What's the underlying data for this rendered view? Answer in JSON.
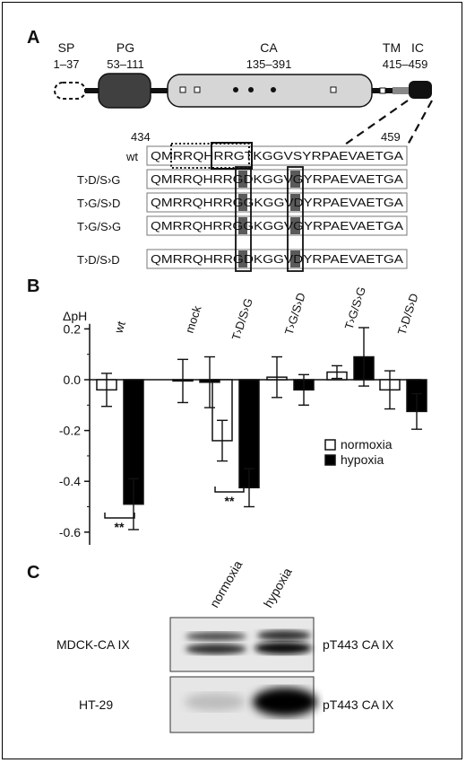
{
  "panel_a": {
    "label": "A",
    "domains": [
      {
        "name": "SP",
        "range": "1–37"
      },
      {
        "name": "PG",
        "range": "53–111"
      },
      {
        "name": "CA",
        "range": "135–391"
      },
      {
        "name": "TM",
        "range": "415–459"
      },
      {
        "name": "IC",
        "range": ""
      }
    ],
    "seq_start": "434",
    "seq_end": "459",
    "rows": [
      {
        "label": "wt",
        "seq": "QMRRQHRRGTKGGVSYRPAEVAETGA"
      },
      {
        "label": "T›D/S›G",
        "seq": "QMRRQHRRGDKGGVGYRPAEVAETGA"
      },
      {
        "label": "T›G/S›D",
        "seq": "QMRRQHRRGGKGGVDYRPAEVAETGA"
      },
      {
        "label": "T›G/S›G",
        "seq": "QMRRQHRRGGKGGVGYRPAEVAETGA"
      },
      {
        "label": "T›D/S›D",
        "seq": "QMRRQHRRGDKGGVDYRPAEVAETGA"
      }
    ]
  },
  "panel_b": {
    "label": "B",
    "legend": [
      {
        "name": "normoxia",
        "color": "#ffffff"
      },
      {
        "name": "hypoxia",
        "color": "#000000"
      }
    ],
    "significance": [
      "**",
      "**"
    ]
  },
  "chart_data": {
    "type": "bar",
    "ylabel": "ΔpH",
    "ylim": [
      -0.65,
      0.22
    ],
    "yticks": [
      "0.2",
      "0.0",
      "-0.2",
      "-0.4",
      "-0.6"
    ],
    "categories": [
      "wt",
      "mock",
      "T›D/S›G",
      "T›G/S›D",
      "T›G/S›G",
      "T›D/S›D"
    ],
    "series": [
      {
        "name": "normoxia",
        "values": [
          -0.04,
          -0.005,
          -0.24,
          0.01,
          0.03,
          -0.04
        ],
        "errors": [
          0.065,
          0.085,
          0.08,
          0.08,
          0.025,
          0.075
        ]
      },
      {
        "name": "hypoxia",
        "values": [
          -0.49,
          -0.01,
          -0.425,
          -0.04,
          0.09,
          -0.125
        ],
        "errors": [
          0.1,
          0.1,
          0.075,
          0.06,
          0.115,
          0.07
        ]
      }
    ]
  },
  "panel_c": {
    "label": "C",
    "columns": [
      "normoxia",
      "hypoxia"
    ],
    "blots": [
      {
        "cell_line": "MDCK-CA IX",
        "antibody": "pT443 CA IX"
      },
      {
        "cell_line": "HT-29",
        "antibody": "pT443 CA IX"
      }
    ]
  }
}
